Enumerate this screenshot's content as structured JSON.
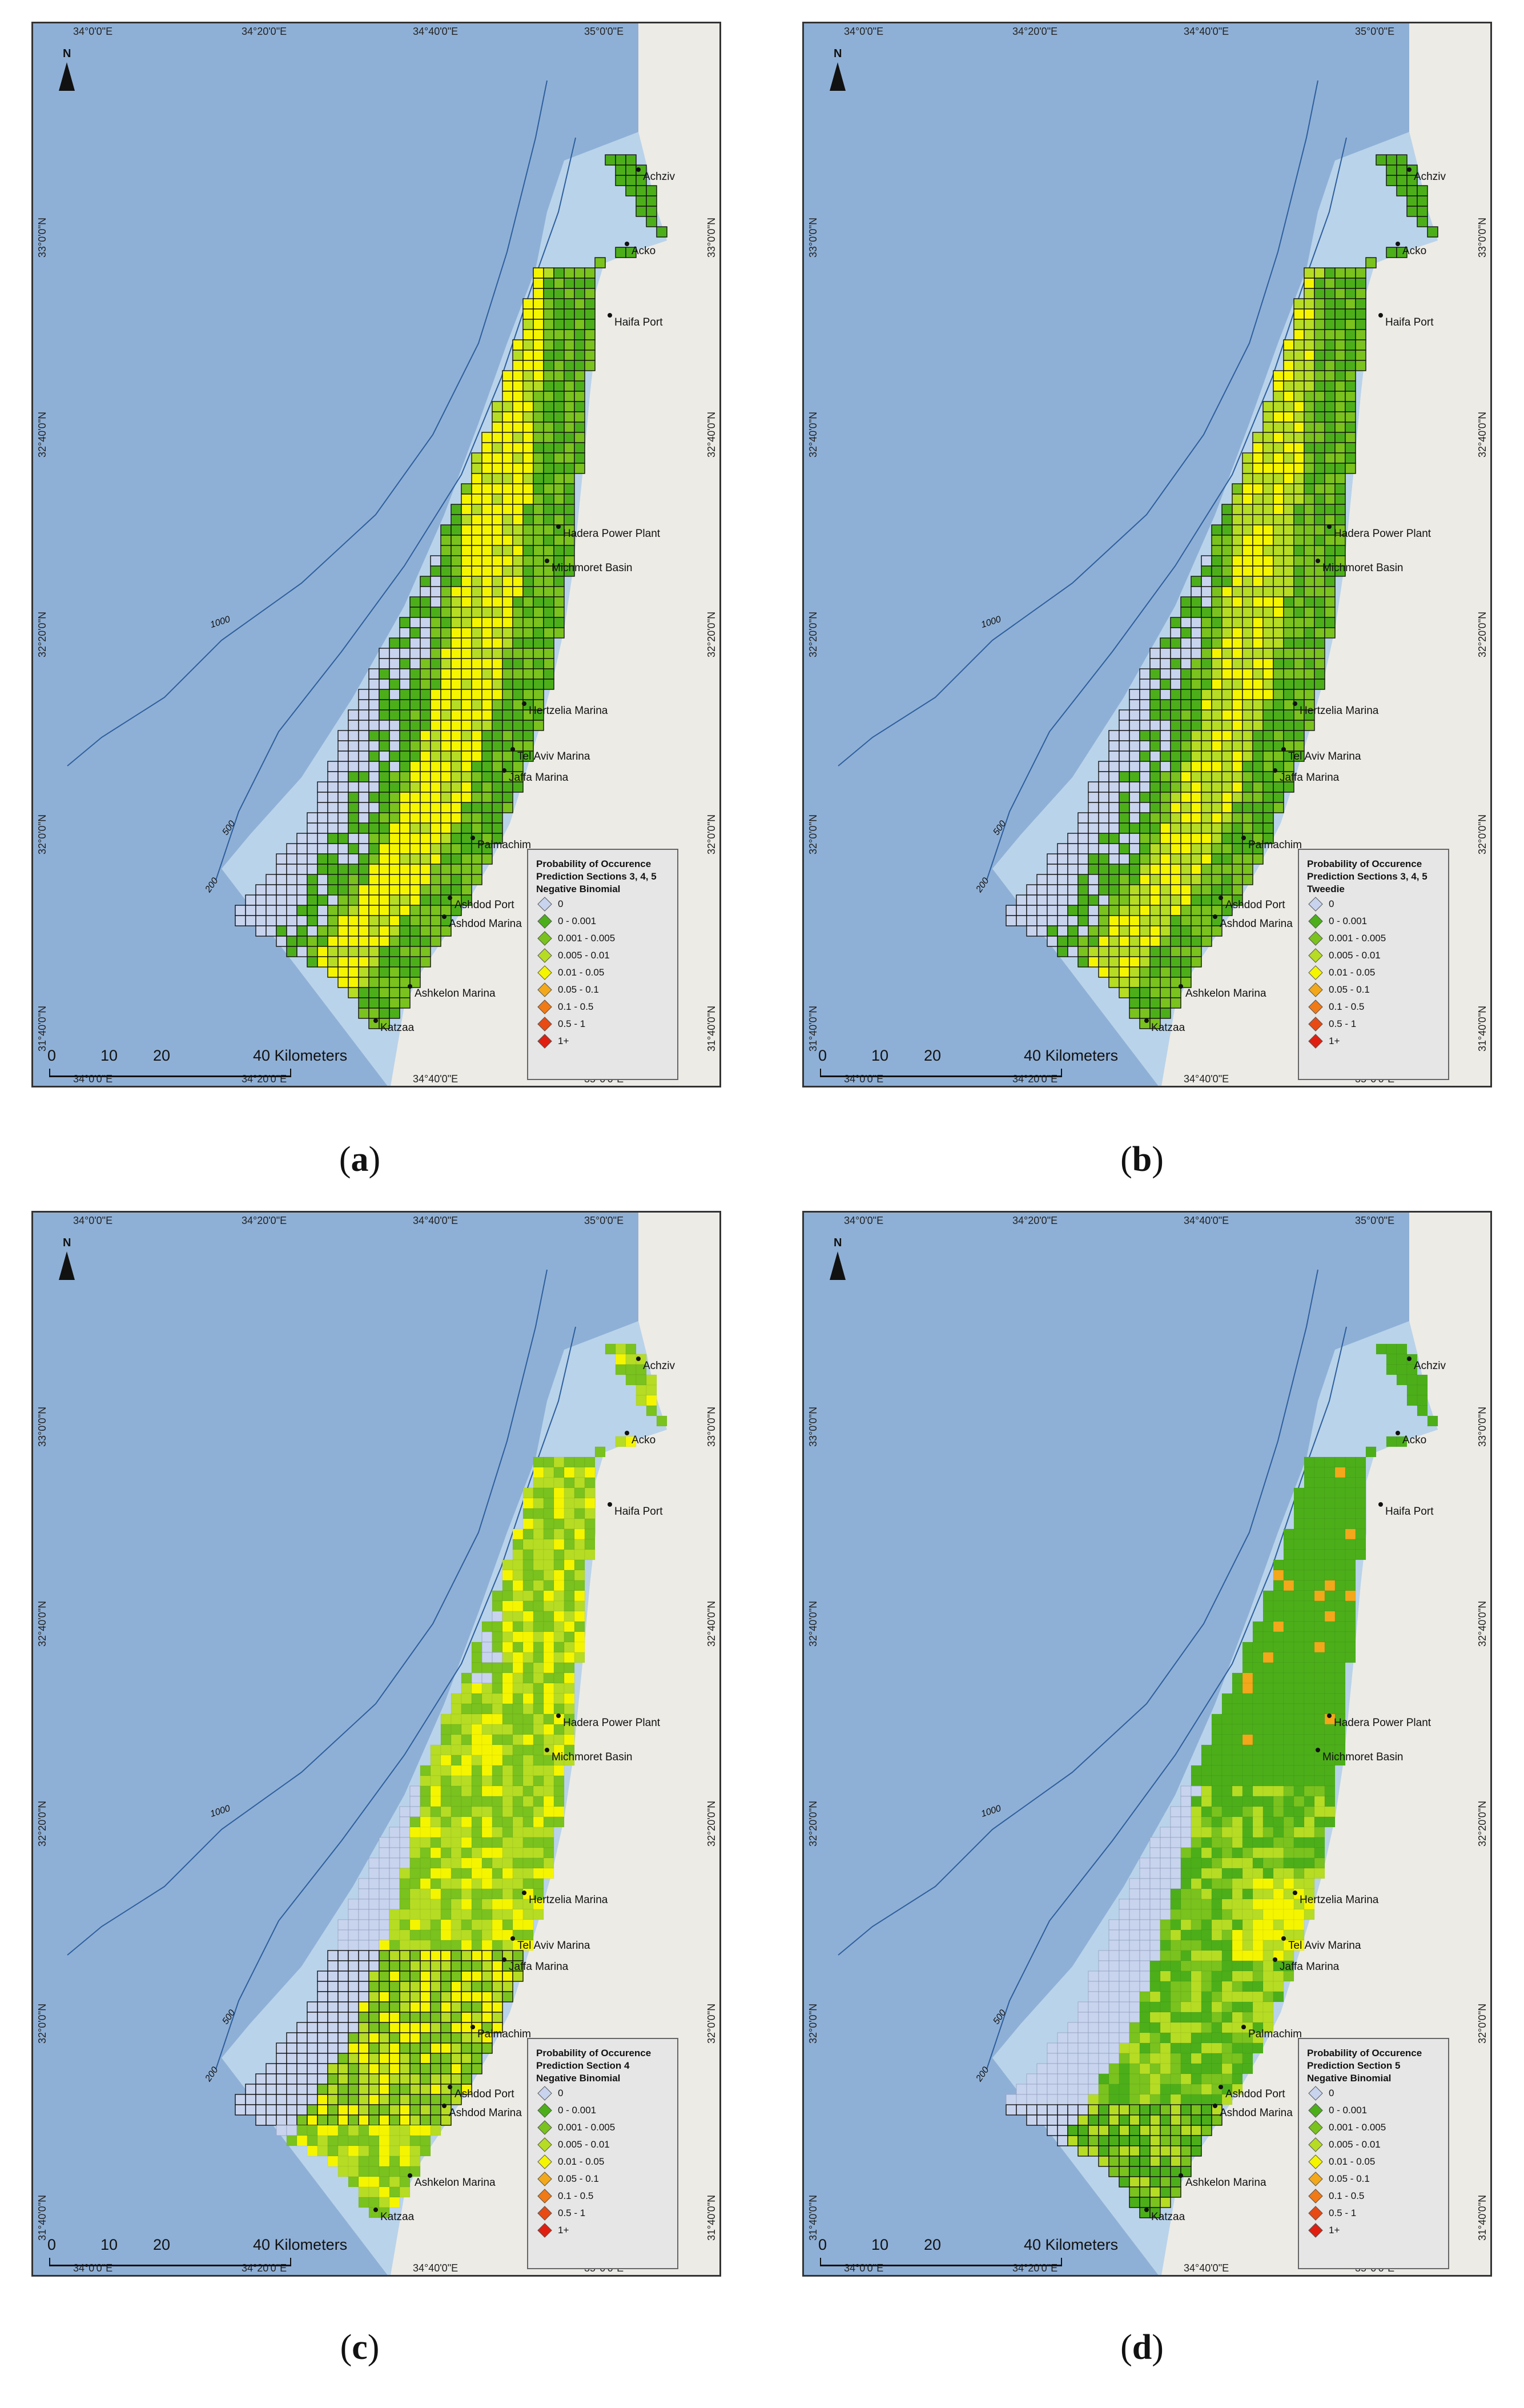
{
  "figure": {
    "panels": [
      {
        "id": "a",
        "caption_label": "a",
        "legend": {
          "title": "Probability of Occurence",
          "subtitle": "Prediction Sections 3, 4, 5",
          "model": "Negative Binomial"
        }
      },
      {
        "id": "b",
        "caption_label": "b",
        "legend": {
          "title": "Probability of Occurence",
          "subtitle": "Prediction Sections 3, 4, 5",
          "model": "Tweedie"
        }
      },
      {
        "id": "c",
        "caption_label": "c",
        "legend": {
          "title": "Probability of Occurence",
          "subtitle": "Prediction Section 4",
          "model": "Negative Binomial"
        }
      },
      {
        "id": "d",
        "caption_label": "d",
        "legend": {
          "title": "Probability of Occurence",
          "subtitle": "Prediction Section 5",
          "model": "Negative Binomial"
        }
      }
    ],
    "legend_classes": [
      {
        "label": "0",
        "color": "#c8d4ee"
      },
      {
        "label": "0 - 0.001",
        "color": "#4caf1a"
      },
      {
        "label": "0.001 - 0.005",
        "color": "#7ac21e"
      },
      {
        "label": "0.005 - 0.01",
        "color": "#b6dc24"
      },
      {
        "label": "0.01 - 0.05",
        "color": "#f5f500"
      },
      {
        "label": "0.05 - 0.1",
        "color": "#f2a81a"
      },
      {
        "label": "0.1 - 0.5",
        "color": "#f07a16"
      },
      {
        "label": "0.5 - 1",
        "color": "#e84a14"
      },
      {
        "label": "1+",
        "color": "#e01f10"
      }
    ],
    "top_longitudes": [
      "34°0'0\"E",
      "34°20'0\"E",
      "34°40'0\"E",
      "35°0'0\"E"
    ],
    "bottom_longitudes": [
      "34°0'0\"E",
      "34°20'0\"E",
      "34°40'0\"E",
      "35°0'0\"E"
    ],
    "latitudes": [
      "33°0'0\"N",
      "32°40'0\"N",
      "32°20'0\"N",
      "32°0'0\"N",
      "31°40'0\"N"
    ],
    "places": [
      "Achziv",
      "Acko",
      "Haifa Port",
      "Hadera Power Plant",
      "Michmoret Basin",
      "Hertzelia Marina",
      "Tel Aviv Marina",
      "Jaffa Marina",
      "Palmachim",
      "Ashdod Port",
      "Ashdod Marina",
      "Ashkelon Marina",
      "Katzaa"
    ],
    "depth_labels": [
      "1000",
      "500",
      "200"
    ],
    "scale": {
      "ticks": [
        "0",
        "10",
        "20"
      ],
      "end": "40 Kilometers"
    },
    "north_label": "N",
    "colors": {
      "sea_deep": "#8fb0d6",
      "sea_shelf": "#b9d3ea",
      "land": "#ecebe6",
      "grid_line": "#111111"
    }
  }
}
